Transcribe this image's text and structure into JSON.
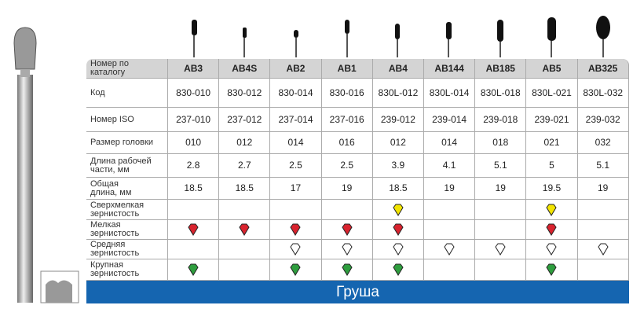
{
  "table": {
    "header": {
      "label": "Номер по\nкаталогу",
      "columns": [
        "AB3",
        "AB4S",
        "AB2",
        "AB1",
        "AB4",
        "AB144",
        "AB185",
        "AB5",
        "AB325"
      ]
    },
    "rows": [
      {
        "label": "Код",
        "cells": [
          "830-010",
          "830-012",
          "830-014",
          "830-016",
          "830L-012",
          "830L-014",
          "830L-018",
          "830L-021",
          "830L-032"
        ]
      },
      {
        "label": "Номер ISO",
        "cells": [
          "237-010",
          "237-012",
          "237-014",
          "237-016",
          "239-012",
          "239-014",
          "239-018",
          "239-021",
          "239-032"
        ]
      },
      {
        "label": "Размер головки",
        "cells": [
          "010",
          "012",
          "014",
          "016",
          "012",
          "014",
          "018",
          "021",
          "032"
        ]
      },
      {
        "label": "Длина рабочей\nчасти, мм",
        "cells": [
          "2.8",
          "2.7",
          "2.5",
          "2.5",
          "3.9",
          "4.1",
          "5.1",
          "5",
          "5.1"
        ]
      },
      {
        "label": "Общая\nдлина, мм",
        "cells": [
          "18.5",
          "18.5",
          "17",
          "19",
          "18.5",
          "19",
          "19",
          "19.5",
          "19"
        ]
      }
    ],
    "grit_rows": [
      {
        "label": "Сверхмелкая\nзернистость",
        "markers": [
          null,
          null,
          null,
          null,
          "#f2e400",
          null,
          null,
          "#f2e400",
          null
        ]
      },
      {
        "label": "Мелкая\nзернистость",
        "markers": [
          "#d9232e",
          "#d9232e",
          "#d9232e",
          "#d9232e",
          "#d9232e",
          null,
          null,
          "#d9232e",
          null
        ]
      },
      {
        "label": "Средняя\nзернистость",
        "markers": [
          null,
          null,
          "#ffffff",
          "#ffffff",
          "#ffffff",
          "#ffffff",
          "#ffffff",
          "#ffffff",
          "#ffffff"
        ]
      },
      {
        "label": "Крупная\nзернистость",
        "markers": [
          "#2e9e3e",
          null,
          "#2e9e3e",
          "#2e9e3e",
          "#2e9e3e",
          null,
          null,
          "#2e9e3e",
          null
        ]
      }
    ]
  },
  "footer": "Груша"
}
